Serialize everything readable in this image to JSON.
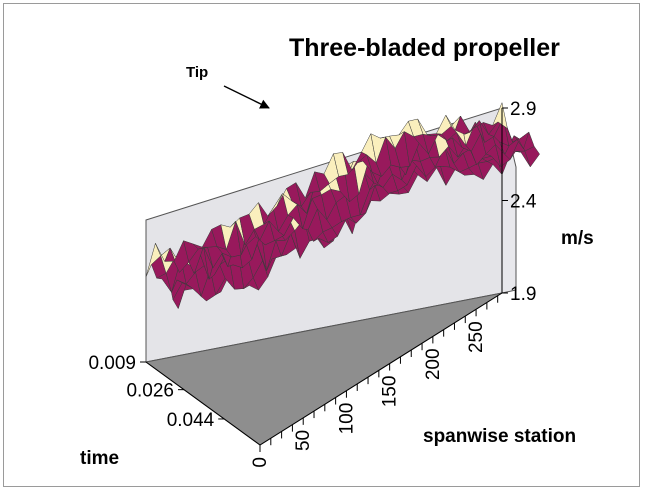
{
  "chart_data": {
    "type": "surface",
    "title": "Three-bladed propeller",
    "annotation": "Tip",
    "z_unit": "m/s",
    "z_ticks": [
      "1.9",
      "2.4",
      "2.9"
    ],
    "time_label": "time",
    "time_ticks": [
      "0.009",
      "0.026",
      "0.044"
    ],
    "span_label": "spanwise station",
    "span_ticks": [
      "0",
      "50",
      "100",
      "150",
      "200",
      "250"
    ],
    "zlim": [
      1.9,
      2.9
    ],
    "span_range": [
      0,
      280
    ],
    "time_range": [
      0.009,
      0.06
    ],
    "surface_profile": {
      "spanwise_station": [
        0,
        25,
        50,
        75,
        100,
        125,
        150,
        175,
        200,
        225,
        250,
        280
      ],
      "velocity_mean": [
        2.45,
        2.47,
        2.5,
        2.55,
        2.62,
        2.7,
        2.76,
        2.82,
        2.85,
        2.86,
        2.86,
        2.85
      ]
    },
    "colors": {
      "upper": "#faefbd",
      "lower": "#98195c",
      "mesh": "#3b3b3b",
      "wall": "#e4e4e8",
      "floor": "#8e8e8e"
    }
  }
}
